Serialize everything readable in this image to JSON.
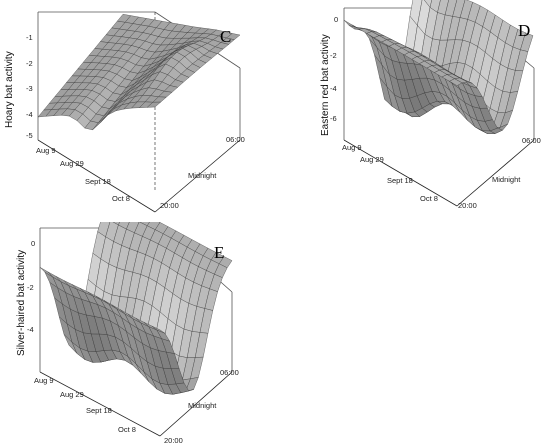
{
  "panels": [
    {
      "id": "C",
      "letter": "C",
      "zlabel": "Hoary bat activity",
      "zticks": [
        "-1",
        "-2",
        "-3",
        "-4",
        "-5"
      ],
      "dateticks": [
        "Aug 9",
        "Aug 29",
        "Sept 18",
        "Oct 8"
      ],
      "timeticks": [
        "06:00",
        "Midnight",
        "20:00"
      ]
    },
    {
      "id": "D",
      "letter": "D",
      "zlabel": "Eastern red bat activity",
      "zticks": [
        "0",
        "-2",
        "-4",
        "-6"
      ],
      "dateticks": [
        "Aug 9",
        "Aug 29",
        "Sept 18",
        "Oct 8"
      ],
      "timeticks": [
        "06:00",
        "Midnight",
        "20:00"
      ]
    },
    {
      "id": "E",
      "letter": "E",
      "zlabel": "Silver-haired bat activity",
      "zticks": [
        "0",
        "-2",
        "-4"
      ],
      "dateticks": [
        "Aug 9",
        "Aug 29",
        "Sept 18",
        "Oct 8"
      ],
      "timeticks": [
        "06:00",
        "Midnight",
        "20:00"
      ]
    }
  ],
  "chart_data": [
    {
      "type": "surface",
      "panel": "C",
      "title": "",
      "xlabel": "",
      "ylabel": "",
      "zlabel": "Hoary bat activity",
      "x_ticks": [
        "Aug 9",
        "Aug 29",
        "Sept 18",
        "Oct 8"
      ],
      "y_ticks": [
        "20:00",
        "Midnight",
        "06:00"
      ],
      "zlim": [
        -5.5,
        -0.5
      ],
      "z_ticks": [
        -1,
        -2,
        -3,
        -4,
        -5
      ]
    },
    {
      "type": "surface",
      "panel": "D",
      "title": "",
      "xlabel": "",
      "ylabel": "",
      "zlabel": "Eastern red bat activity",
      "x_ticks": [
        "Aug 9",
        "Aug 29",
        "Sept 18",
        "Oct 8"
      ],
      "y_ticks": [
        "20:00",
        "Midnight",
        "06:00"
      ],
      "zlim": [
        -8,
        0.5
      ],
      "z_ticks": [
        0,
        -2,
        -4,
        -6
      ]
    },
    {
      "type": "surface",
      "panel": "E",
      "title": "",
      "xlabel": "",
      "ylabel": "",
      "zlabel": "Silver-haired bat activity",
      "x_ticks": [
        "Aug 9",
        "Aug 29",
        "Sept 18",
        "Oct 8"
      ],
      "y_ticks": [
        "20:00",
        "Midnight",
        "06:00"
      ],
      "zlim": [
        -5.5,
        0.5
      ],
      "z_ticks": [
        0,
        -2,
        -4
      ]
    }
  ]
}
